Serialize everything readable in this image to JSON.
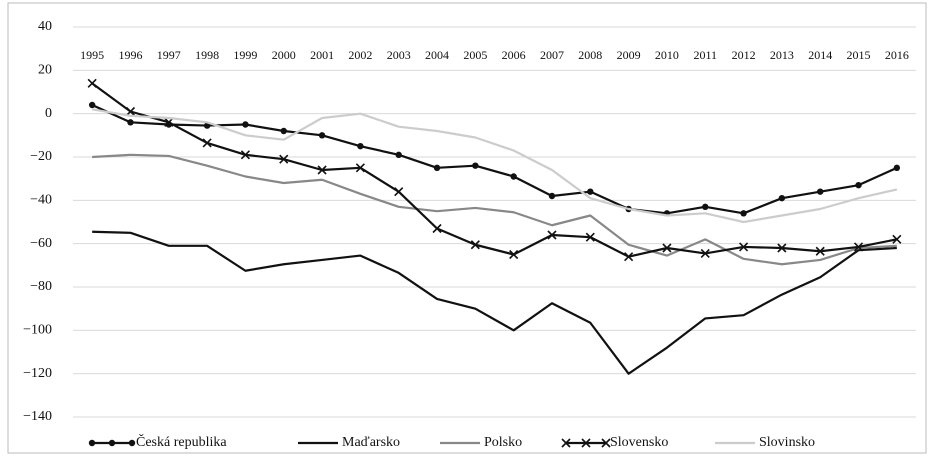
{
  "chart_data": {
    "type": "line",
    "categories": [
      "1995",
      "1996",
      "1997",
      "1998",
      "1999",
      "2000",
      "2001",
      "2002",
      "2003",
      "2004",
      "2005",
      "2006",
      "2007",
      "2008",
      "2009",
      "2010",
      "2011",
      "2012",
      "2013",
      "2014",
      "2015",
      "2016"
    ],
    "series": [
      {
        "name": "Česká republika",
        "color": "#111111",
        "marker": "circle",
        "values": [
          4,
          -4,
          -5,
          -5.5,
          -5,
          -8,
          -10,
          -15,
          -19,
          -25,
          -24,
          -29,
          -38,
          -36,
          -44,
          -46,
          -43,
          -46,
          -39,
          -36,
          -33,
          -25
        ]
      },
      {
        "name": "Maďarsko",
        "color": "#111111",
        "marker": "none",
        "values": [
          -54.5,
          -55,
          -61,
          -61,
          -72.5,
          -69.5,
          -67.5,
          -65.5,
          -73.5,
          -85.5,
          -90,
          -100,
          -87.5,
          -96.5,
          -120,
          -108,
          -94.5,
          -93,
          -83.5,
          -75.5,
          -63,
          -62
        ]
      },
      {
        "name": "Polsko",
        "color": "#888888",
        "marker": "none",
        "values": [
          -20,
          -19,
          -19.5,
          -24,
          -29,
          -32,
          -30.5,
          -37,
          -43,
          -45,
          -43.5,
          -45.5,
          -51.5,
          -47,
          -60.5,
          -65.5,
          -58,
          -67,
          -69.5,
          -67.5,
          -62,
          -61
        ]
      },
      {
        "name": "Slovensko",
        "color": "#111111",
        "marker": "x",
        "values": [
          14,
          1,
          -4,
          -13.5,
          -19,
          -21,
          -26,
          -25,
          -36,
          -53,
          -60.5,
          -65,
          -56,
          -57,
          -66,
          -62,
          -64.5,
          -61.5,
          -62,
          -63.5,
          -61.5,
          -58
        ]
      },
      {
        "name": "Slovinsko",
        "color": "#cccccc",
        "marker": "none",
        "values": [
          2,
          -1,
          -2,
          -4,
          -10,
          -12,
          -2,
          0,
          -6,
          -8,
          -11,
          -17,
          -26,
          -39,
          -44,
          -47,
          -46,
          -50,
          -47,
          -44,
          -39,
          -35
        ]
      }
    ],
    "ylim": [
      -140,
      40
    ],
    "yticks": [
      {
        "value": -140,
        "label": "−140"
      },
      {
        "value": -120,
        "label": "−120"
      },
      {
        "value": -100,
        "label": "−100"
      },
      {
        "value": -80,
        "label": "−80"
      },
      {
        "value": -60,
        "label": "−60"
      },
      {
        "value": -40,
        "label": "−40"
      },
      {
        "value": -20,
        "label": "−20"
      },
      0,
      20,
      40
    ],
    "grid": true,
    "legend": "bottom"
  }
}
